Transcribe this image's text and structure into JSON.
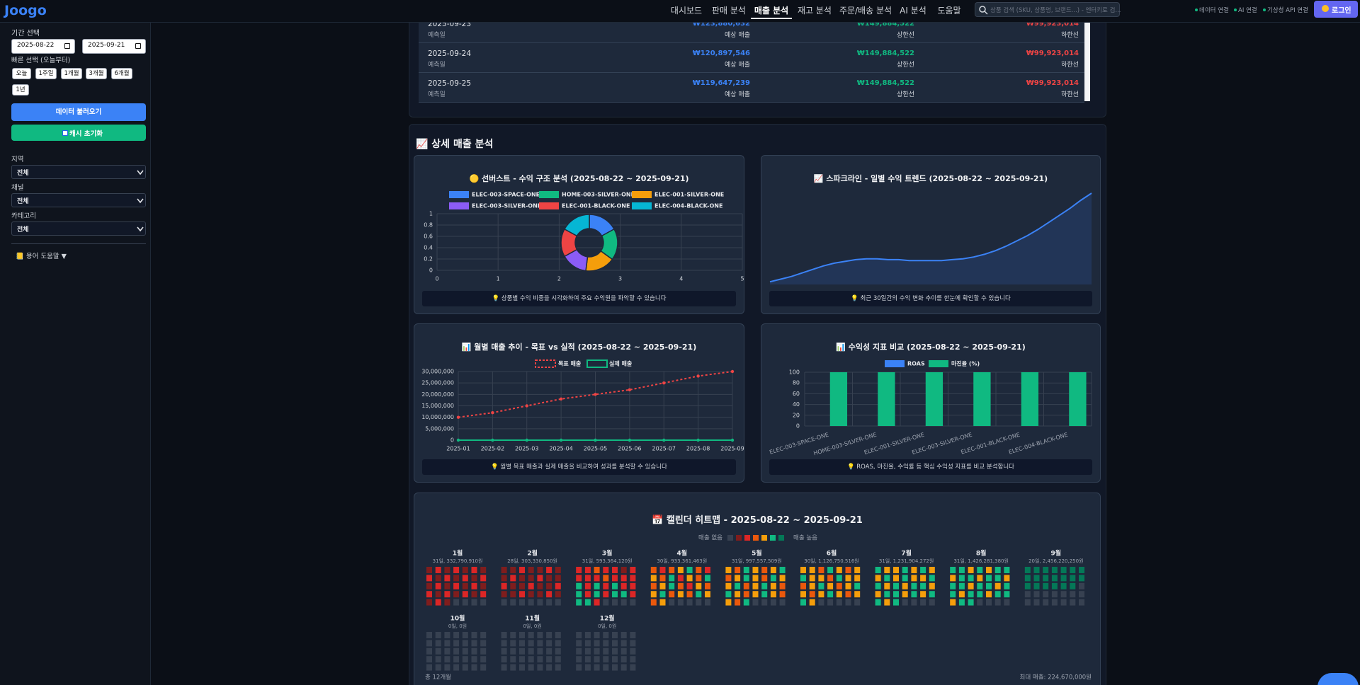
{
  "nav": {
    "logo": "Joogo",
    "items": [
      "대시보드",
      "판매 분석",
      "매출 분석",
      "재고 분석",
      "주문/배송 분석",
      "AI 분석",
      "도움말"
    ],
    "active_index": 2,
    "search_placeholder": "상품 검색 (SKU, 상품명, 브랜드...) - 엔터키로 검...",
    "status": [
      "데이터 연결",
      "AI 연결",
      "기상청 API 연결"
    ],
    "login": "로그인"
  },
  "sidebar": {
    "period_label": "기간 선택",
    "start_date": "2025-08-22",
    "end_date": "2025-09-21",
    "quick_label": "빠른 선택 (오늘부터)",
    "quick": [
      "오늘",
      "1주일",
      "1개월",
      "3개월",
      "6개월",
      "1년"
    ],
    "load": "데이터 불러오기",
    "cache": "캐시 초기화",
    "filters": [
      {
        "label": "지역",
        "value": "전체"
      },
      {
        "label": "채널",
        "value": "전체"
      },
      {
        "label": "카테고리",
        "value": "전체"
      }
    ],
    "glossary": "📒 용어 도움말 ▼"
  },
  "forecast_table": {
    "rows": [
      {
        "date": "2025-09-23",
        "date_label": "예측일",
        "forecast": "₩123,880,632",
        "forecast_label": "예상 매출",
        "upper": "₩149,884,522",
        "upper_label": "상한선",
        "lower": "₩99,923,014",
        "lower_label": "하한선"
      },
      {
        "date": "2025-09-24",
        "date_label": "예측일",
        "forecast": "₩120,897,546",
        "forecast_label": "예상 매출",
        "upper": "₩149,884,522",
        "upper_label": "상한선",
        "lower": "₩99,923,014",
        "lower_label": "하한선"
      },
      {
        "date": "2025-09-25",
        "date_label": "예측일",
        "forecast": "₩119,647,239",
        "forecast_label": "예상 매출",
        "upper": "₩149,884,522",
        "upper_label": "상한선",
        "lower": "₩99,923,014",
        "lower_label": "하한선"
      }
    ]
  },
  "section_title": "📈 상세 매출 분석",
  "chart_data": [
    {
      "type": "doughnut",
      "title": "🟡 선버스트 - 수익 구조 분석 (2025-08-22 ~ 2025-09-21)",
      "categories": [
        "ELEC-003-SPACE-ONE",
        "HOME-003-SILVER-ONE",
        "ELEC-001-SILVER-ONE",
        "ELEC-003-SILVER-ONE",
        "ELEC-001-BLACK-ONE",
        "ELEC-004-BLACK-ONE"
      ],
      "values": [
        17,
        18,
        17,
        15,
        16,
        17
      ],
      "colors": [
        "#3b82f6",
        "#10b981",
        "#f59e0b",
        "#8b5cf6",
        "#ef4444",
        "#06b6d4"
      ],
      "xlim": [
        0,
        5
      ],
      "xticks": [
        0,
        1,
        2,
        3,
        4,
        5
      ],
      "ylim": [
        0,
        1
      ],
      "yticks": [
        0,
        0.2,
        0.4,
        0.6,
        0.8,
        1
      ],
      "grid": true,
      "note": "💡 상품별 수익 비중을 시각화하여 주요 수익원을 파악할 수 있습니다"
    },
    {
      "type": "area",
      "title": "📈 스파크라인 - 일별 수익 트렌드 (2025-08-22 ~ 2025-09-21)",
      "values": [
        3,
        6,
        9,
        13,
        17,
        21,
        24,
        26,
        28,
        29,
        29,
        28,
        28,
        27,
        27,
        27,
        27,
        28,
        29,
        31,
        34,
        38,
        43,
        49,
        55,
        62,
        70,
        78,
        86,
        95,
        103
      ],
      "color": "#3b82f6",
      "note": "💡 최근 30일간의 수익 변화 추이를 한눈에 확인할 수 있습니다"
    },
    {
      "type": "line",
      "title": "📊 월별 매출 추이 - 목표 vs 실적 (2025-08-22 ~ 2025-09-21)",
      "categories": [
        "2025-01",
        "2025-02",
        "2025-03",
        "2025-04",
        "2025-05",
        "2025-06",
        "2025-07",
        "2025-08",
        "2025-09"
      ],
      "series": [
        {
          "name": "목표 매출",
          "color": "#ef4444",
          "dashed": true,
          "values": [
            10000000,
            12000000,
            15000000,
            18000000,
            20000000,
            22000000,
            25000000,
            28000000,
            30000000
          ]
        },
        {
          "name": "실제 매출",
          "color": "#10b981",
          "values": [
            0,
            0,
            0,
            0,
            0,
            0,
            0,
            0,
            0
          ]
        }
      ],
      "ylim": [
        0,
        30000000
      ],
      "yticks": [
        0,
        {
          "value": 5000000,
          "label": "5,000,000"
        },
        {
          "value": 10000000,
          "label": "10,000,000"
        },
        {
          "value": 15000000,
          "label": "15,000,000"
        },
        {
          "value": 20000000,
          "label": "20,000,000"
        },
        {
          "value": 25000000,
          "label": "25,000,000"
        },
        {
          "value": 30000000,
          "label": "30,000,000"
        }
      ],
      "grid": true,
      "note": "💡 월별 목표 매출과 실제 매출을 비교하여 성과를 분석할 수 있습니다"
    },
    {
      "type": "bar",
      "title": "📊 수익성 지표 비교 (2025-08-22 ~ 2025-09-21)",
      "categories": [
        "ELEC-003-SPACE-ONE",
        "HOME-003-SILVER-ONE",
        "ELEC-001-SILVER-ONE",
        "ELEC-003-SILVER-ONE",
        "ELEC-001-BLACK-ONE",
        "ELEC-004-BLACK-ONE"
      ],
      "series": [
        {
          "name": "ROAS",
          "color": "#3b82f6",
          "values": [
            0,
            0,
            0,
            0,
            0,
            0
          ]
        },
        {
          "name": "마진율 (%)",
          "color": "#10b981",
          "values": [
            100,
            100,
            100,
            100,
            100,
            100
          ]
        }
      ],
      "ylim": [
        0,
        100
      ],
      "yticks": [
        0,
        20,
        40,
        60,
        80,
        100
      ],
      "grid": true,
      "note": "💡 ROAS, 마진율, 수익률 등 핵심 수익성 지표를 비교 분석합니다"
    },
    {
      "type": "heatmap",
      "title": "📅 캘린더 히트맵 - 2025-08-22 ~ 2025-09-21",
      "legend_low": "매출 없음",
      "legend_high": "매출 높음",
      "colors": [
        "#374151",
        "#7f1d1d",
        "#dc2626",
        "#ea580c",
        "#f59e0b",
        "#10b981",
        "#047857"
      ],
      "months": [
        {
          "name": "1월",
          "summary": "31일, 332,790,910원",
          "levels": [
            1,
            2,
            1,
            2,
            1,
            2,
            1,
            2,
            1,
            2,
            1,
            2,
            1,
            2,
            1,
            2,
            1,
            2,
            1,
            2,
            1,
            2,
            1,
            2,
            1,
            2,
            1,
            2,
            1,
            2,
            1
          ]
        },
        {
          "name": "2월",
          "summary": "28일, 303,330,850원",
          "levels": [
            1,
            1,
            2,
            1,
            1,
            2,
            1,
            1,
            2,
            1,
            1,
            2,
            1,
            1,
            2,
            1,
            1,
            2,
            1,
            1,
            2,
            1,
            1,
            2,
            1,
            1,
            2,
            1
          ]
        },
        {
          "name": "3월",
          "summary": "31일, 593,364,120원",
          "levels": [
            2,
            2,
            3,
            2,
            2,
            1,
            2,
            2,
            2,
            2,
            3,
            2,
            2,
            2,
            5,
            2,
            5,
            2,
            5,
            2,
            2,
            5,
            2,
            5,
            2,
            5,
            5,
            2,
            5,
            5,
            2
          ]
        },
        {
          "name": "4월",
          "summary": "30일, 933,361,463원",
          "levels": [
            3,
            2,
            3,
            4,
            5,
            3,
            2,
            4,
            3,
            5,
            2,
            4,
            3,
            5,
            3,
            4,
            5,
            3,
            2,
            4,
            3,
            4,
            5,
            3,
            4,
            3,
            5,
            4,
            3,
            4
          ]
        },
        {
          "name": "5월",
          "summary": "31일, 997,557,509원",
          "levels": [
            4,
            3,
            5,
            4,
            3,
            4,
            5,
            3,
            4,
            5,
            4,
            3,
            5,
            4,
            4,
            5,
            3,
            4,
            5,
            4,
            3,
            5,
            4,
            3,
            4,
            5,
            4,
            3,
            4,
            3,
            5
          ]
        },
        {
          "name": "6월",
          "summary": "30일, 1,126,750,516원",
          "levels": [
            4,
            4,
            3,
            5,
            4,
            3,
            4,
            5,
            4,
            4,
            3,
            5,
            4,
            4,
            3,
            4,
            5,
            4,
            3,
            4,
            5,
            4,
            3,
            4,
            5,
            4,
            3,
            4,
            5,
            4
          ]
        },
        {
          "name": "7월",
          "summary": "31일, 1,231,904,272원",
          "levels": [
            5,
            4,
            4,
            5,
            4,
            5,
            4,
            4,
            5,
            4,
            5,
            4,
            4,
            5,
            5,
            4,
            5,
            4,
            5,
            5,
            4,
            4,
            5,
            5,
            4,
            5,
            4,
            5,
            5,
            4,
            5
          ]
        },
        {
          "name": "8월",
          "summary": "31일, 1,426,281,380원",
          "levels": [
            5,
            5,
            4,
            5,
            4,
            5,
            5,
            4,
            5,
            5,
            4,
            5,
            5,
            4,
            5,
            5,
            4,
            5,
            5,
            4,
            5,
            5,
            4,
            5,
            5,
            4,
            5,
            5,
            4,
            5,
            5
          ]
        },
        {
          "name": "9월",
          "summary": "20일, 2,456,220,250원",
          "levels": [
            6,
            6,
            6,
            6,
            6,
            6,
            6,
            6,
            6,
            6,
            6,
            6,
            6,
            6,
            6,
            6,
            6,
            6,
            6,
            6,
            0,
            0,
            0,
            0,
            0,
            0,
            0,
            0,
            0,
            0
          ]
        },
        {
          "name": "10월",
          "summary": "0일, 0원",
          "levels": []
        },
        {
          "name": "11월",
          "summary": "0일, 0원",
          "levels": []
        },
        {
          "name": "12월",
          "summary": "0일, 0원",
          "levels": []
        }
      ],
      "footer_left": "총 12개월",
      "footer_right": "최대 매출: 224,670,000원"
    }
  ]
}
